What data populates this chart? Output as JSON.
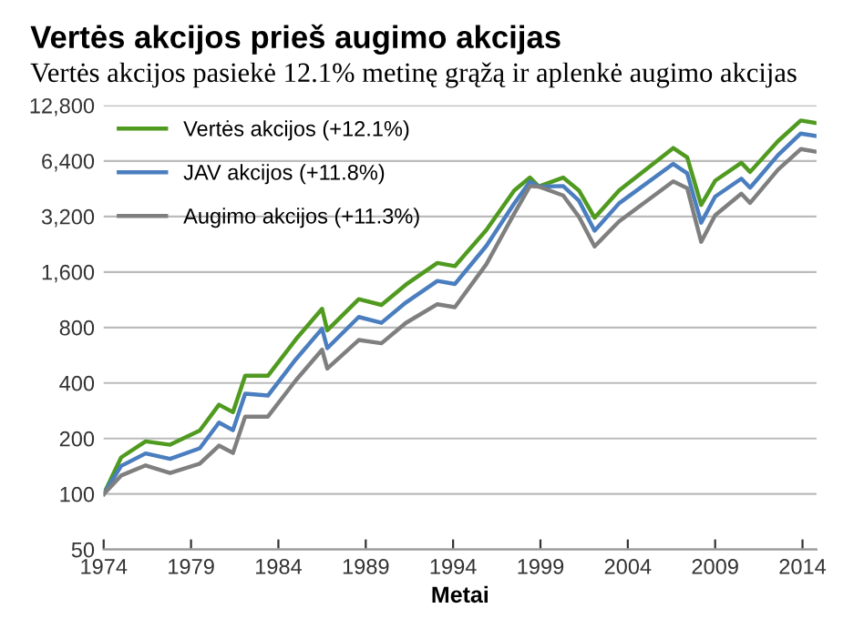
{
  "chart_data": {
    "type": "line",
    "title": "Vertės akcijos prieš augimo akcijas",
    "subtitle": "Vertės akcijos pasiekė 12.1% metinę grąžą ir aplenkė augimo akcijas",
    "xlabel": "Metai",
    "x": [
      1974.0,
      1975.0,
      1976.4,
      1977.8,
      1979.5,
      1980.6,
      1981.4,
      1982.1,
      1983.4,
      1985.0,
      1986.5,
      1986.8,
      1988.6,
      1989.9,
      1991.3,
      1993.1,
      1994.1,
      1995.9,
      1997.5,
      1998.4,
      1998.9,
      2000.3,
      2001.2,
      2002.1,
      2003.5,
      2006.6,
      2007.4,
      2008.2,
      2009.0,
      2010.5,
      2011.0,
      2012.6,
      2013.9,
      2014.7
    ],
    "series": [
      {
        "name": "Vertės akcijos (+12.1%)",
        "color": "#4f9a1f",
        "values": [
          100,
          158,
          193,
          185,
          221,
          305,
          278,
          438,
          438,
          690,
          1010,
          772,
          1140,
          1060,
          1366,
          1790,
          1720,
          2700,
          4430,
          5200,
          4650,
          5200,
          4430,
          3150,
          4430,
          7520,
          6700,
          3700,
          5000,
          6250,
          5580,
          8200,
          10600,
          10300
        ]
      },
      {
        "name": "JAV akcijos (+11.8%)",
        "color": "#4a7ebf",
        "values": [
          100,
          142,
          166,
          155,
          177,
          244,
          222,
          350,
          342,
          538,
          788,
          618,
          912,
          848,
          1093,
          1430,
          1376,
          2214,
          3766,
          4940,
          4650,
          4680,
          3900,
          2680,
          3770,
          6170,
          5490,
          2960,
          4100,
          5130,
          4580,
          6890,
          9010,
          8760
        ]
      },
      {
        "name": "Augimo akcijos (+11.3%)",
        "color": "#7f7f7f",
        "values": [
          100,
          126,
          143,
          130,
          146,
          183,
          167,
          263,
          263,
          414,
          606,
          479,
          684,
          657,
          847,
          1070,
          1030,
          1760,
          3320,
          4680,
          4650,
          4160,
          3190,
          2200,
          3010,
          4960,
          4560,
          2330,
          3250,
          4250,
          3790,
          5740,
          7420,
          7210
        ]
      }
    ],
    "log": true,
    "xlim": [
      1974,
      2014.8
    ],
    "xticks": [
      1974,
      1979,
      1984,
      1989,
      1994,
      1999,
      2004,
      2009,
      2014
    ],
    "ylim": [
      50,
      12800
    ],
    "yticks": [
      50,
      100,
      200,
      400,
      800,
      {
        "value": 1600,
        "label": "1,600"
      },
      {
        "value": 3200,
        "label": "3,200"
      },
      {
        "value": 6400,
        "label": "6,400"
      },
      {
        "value": 12800,
        "label": "12,800"
      }
    ],
    "grid": "y",
    "legend": "top left",
    "marker": "none",
    "line_style": "solid"
  }
}
